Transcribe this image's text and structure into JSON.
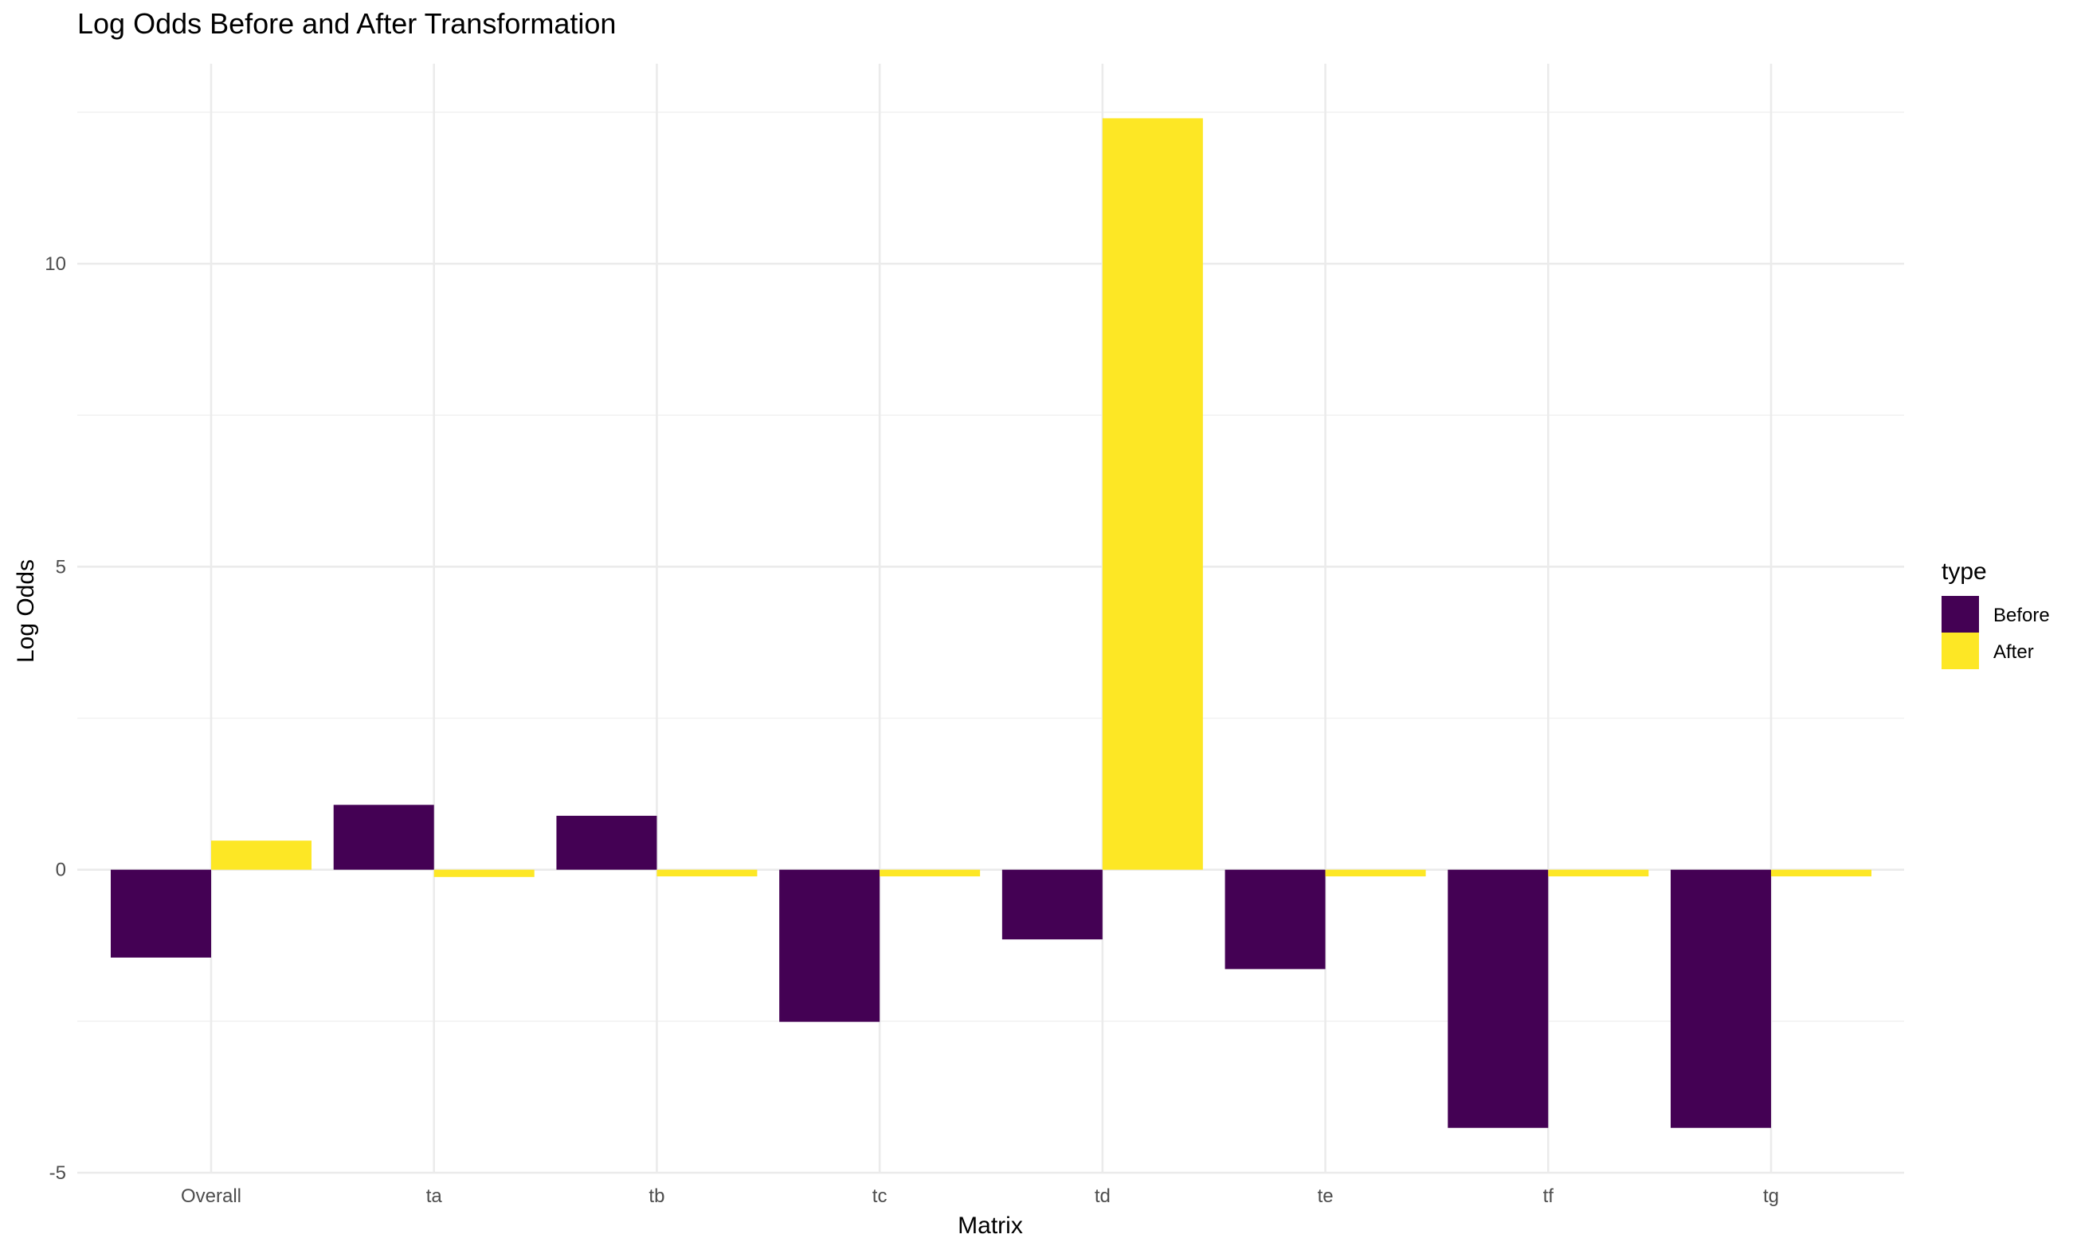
{
  "chart_data": {
    "type": "bar",
    "title": "Log Odds Before and After Transformation",
    "xlabel": "Matrix",
    "ylabel": "Log Odds",
    "categories": [
      "Overall",
      "ta",
      "tb",
      "tc",
      "td",
      "te",
      "tf",
      "tg"
    ],
    "series": [
      {
        "name": "Before",
        "color": "#440154",
        "values": [
          -1.45,
          1.07,
          0.89,
          -2.51,
          -1.15,
          -1.64,
          -4.26,
          -4.26
        ]
      },
      {
        "name": "After",
        "color": "#fde725",
        "values": [
          0.48,
          -0.12,
          -0.11,
          -0.11,
          12.4,
          -0.11,
          -0.11,
          -0.11
        ]
      }
    ],
    "ylim": [
      -5,
      13.3
    ],
    "yticks": [
      -5,
      0,
      5,
      10
    ],
    "yticks_minor": [
      -2.5,
      2.5,
      7.5,
      12.5
    ],
    "grid": true,
    "legend": {
      "title": "type",
      "position": "right"
    }
  }
}
